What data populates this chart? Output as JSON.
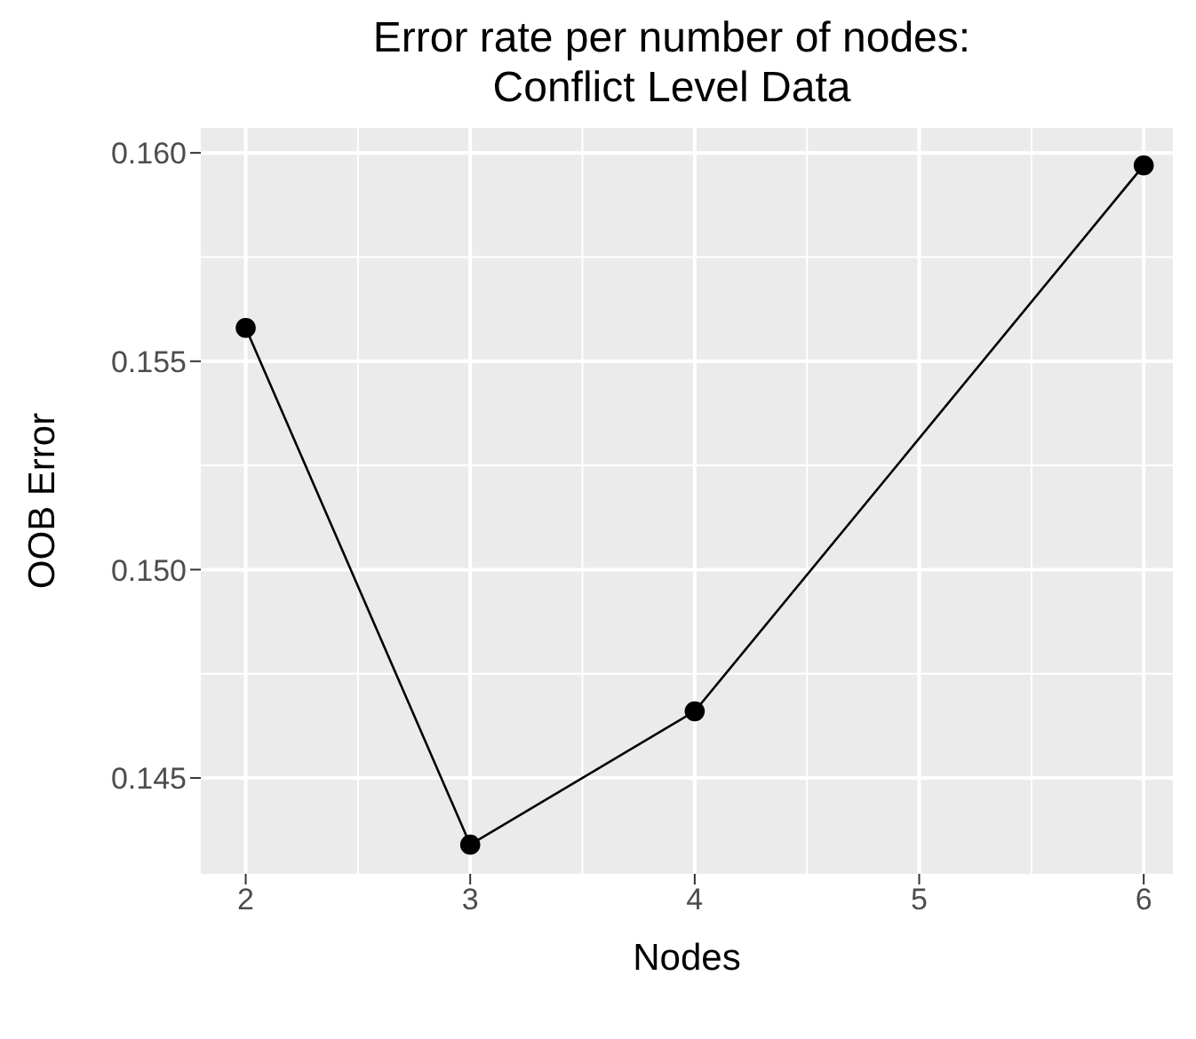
{
  "chart_data": {
    "type": "line",
    "title": "Error rate per number of nodes:\nConflict Level Data",
    "xlabel": "Nodes",
    "ylabel": "OOB Error",
    "x": [
      2,
      3,
      4,
      6
    ],
    "series": [
      {
        "color": "#000000",
        "values": [
          0.1558,
          0.1434,
          0.1466,
          0.1597
        ]
      }
    ],
    "xlim": [
      1.8,
      6.13
    ],
    "xticks": [
      2,
      3,
      4,
      5,
      6
    ],
    "ylim": [
      0.1427,
      0.1606
    ],
    "yticks": [
      {
        "value": 0.145,
        "label": "0.145"
      },
      {
        "value": 0.15,
        "label": "0.150"
      },
      {
        "value": 0.155,
        "label": "0.155"
      },
      {
        "value": 0.16,
        "label": "0.160"
      }
    ],
    "grid": true,
    "marker": "circle",
    "line_style": "solid"
  }
}
